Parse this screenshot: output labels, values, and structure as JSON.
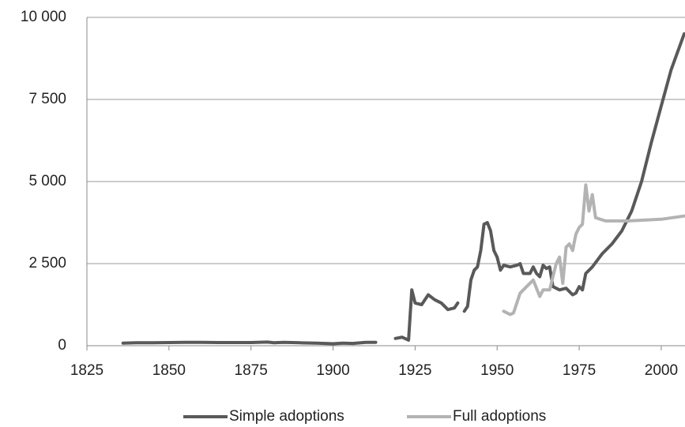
{
  "chart_data": {
    "type": "line",
    "xlim": [
      1825,
      2007
    ],
    "xticks": [
      1825,
      1850,
      1875,
      1900,
      1925,
      1950,
      1975,
      2000
    ],
    "ylim": [
      0,
      10000
    ],
    "yticks": [
      0,
      {
        "value": 2500,
        "label": "2 500"
      },
      {
        "value": 5000,
        "label": "5 000"
      },
      {
        "value": 7500,
        "label": "7 500"
      },
      {
        "value": 10000,
        "label": "10 000"
      }
    ],
    "grid": true,
    "legend": "bottom",
    "series": [
      {
        "name": "Simple adoptions",
        "color": "#595959",
        "x": [
          1836,
          1840,
          1845,
          1850,
          1855,
          1860,
          1865,
          1870,
          1875,
          1880,
          1882,
          1885,
          1890,
          1895,
          1900,
          1903,
          1906,
          1910,
          1913,
          1916,
          1919,
          1921,
          1923,
          1924,
          1925,
          1927,
          1929,
          1931,
          1933,
          1935,
          1937,
          1938,
          1939,
          1940,
          1941,
          1942,
          1943,
          1944,
          1945,
          1946,
          1947,
          1948,
          1949,
          1950,
          1951,
          1952,
          1954,
          1956,
          1957,
          1958,
          1960,
          1961,
          1962,
          1963,
          1964,
          1965,
          1966,
          1967,
          1969,
          1971,
          1973,
          1974,
          1975,
          1976,
          1977,
          1979,
          1982,
          1985,
          1988,
          1991,
          1994,
          1997,
          2000,
          2003,
          2007
        ],
        "values": [
          80,
          90,
          90,
          95,
          100,
          100,
          95,
          95,
          95,
          110,
          90,
          100,
          90,
          80,
          60,
          80,
          70,
          100,
          100,
          null,
          220,
          260,
          170,
          1700,
          1300,
          1250,
          1550,
          1400,
          1300,
          1100,
          1150,
          1300,
          null,
          1050,
          1200,
          2000,
          2300,
          2400,
          2900,
          3700,
          3750,
          3500,
          2900,
          2700,
          2300,
          2450,
          2400,
          2450,
          2500,
          2200,
          2200,
          2400,
          2200,
          2100,
          2450,
          2350,
          2400,
          1800,
          1700,
          1750,
          1550,
          1600,
          1800,
          1700,
          2200,
          2400,
          2800,
          3100,
          3500,
          4100,
          5000,
          6200,
          7300,
          8400,
          9500
        ]
      },
      {
        "name": "Full adoptions",
        "color": "#b3b3b3",
        "x": [
          1952,
          1954,
          1955,
          1957,
          1959,
          1961,
          1963,
          1964,
          1966,
          1967,
          1968,
          1969,
          1970,
          1971,
          1972,
          1973,
          1974,
          1975,
          1976,
          1977,
          1978,
          1979,
          1980,
          1983,
          1990,
          2000,
          2007
        ],
        "values": [
          1050,
          950,
          1000,
          1600,
          1800,
          2000,
          1500,
          1700,
          1700,
          2100,
          2500,
          2700,
          1900,
          3000,
          3100,
          2900,
          3400,
          3600,
          3700,
          4900,
          4100,
          4600,
          3900,
          3800,
          3800,
          3850,
          3950
        ]
      }
    ]
  }
}
